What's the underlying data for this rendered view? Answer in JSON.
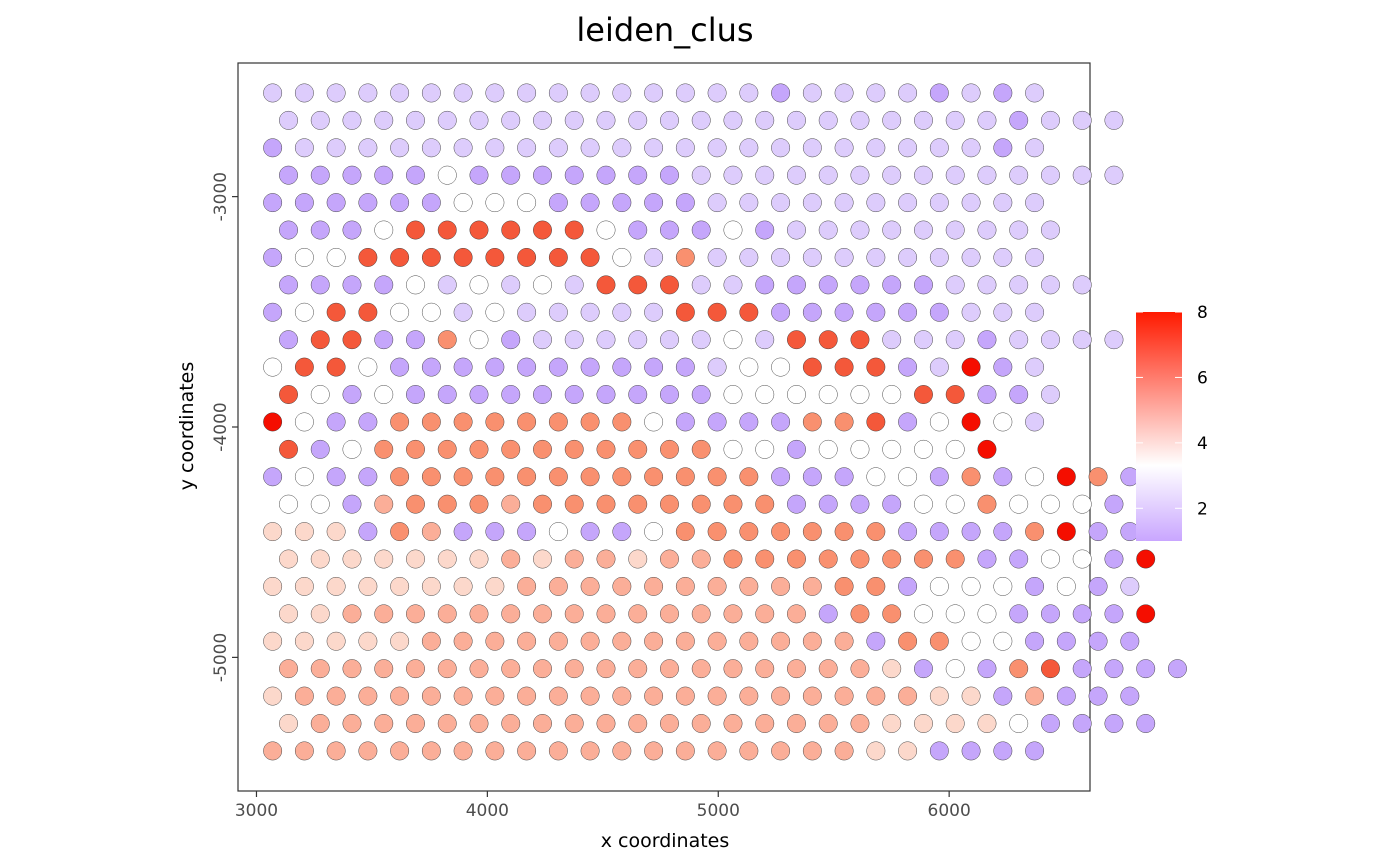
{
  "chart_data": {
    "type": "scatter",
    "title": "leiden_clus",
    "xlabel": "x coordinates",
    "ylabel": "y coordinates",
    "xlim": [
      2920,
      6610
    ],
    "ylim": [
      -5580,
      -2420
    ],
    "x_ticks": [
      3000,
      4000,
      5000,
      6000
    ],
    "y_ticks": [
      -3000,
      -4000,
      -5000
    ],
    "x_tick_labels": [
      "3000",
      "4000",
      "5000",
      "6000"
    ],
    "y_tick_labels": [
      "-3000",
      "-4000",
      "-5000"
    ],
    "grid": false,
    "colorbar": {
      "range": [
        1,
        8
      ],
      "ticks": [
        2,
        4,
        6,
        8
      ],
      "tick_labels": [
        "2",
        "4",
        "6",
        "8"
      ],
      "colors": [
        "#c9a6ff",
        "#ffffff",
        "#ff2a00"
      ],
      "placement": "right"
    },
    "spot_grid": {
      "x_start": 3070,
      "x_step": 137.5,
      "y_start": -2550,
      "y_step": -119,
      "odd_row_x_offset": 68.75
    },
    "cluster_colors": {
      "1": "#c5a6fb",
      "2": "#ddccfc",
      "3": "#ffffff",
      "4": "#fcd8cb",
      "5": "#fbae98",
      "6": "#f9906f",
      "7": "#f4583a",
      "8": "#f50e00"
    },
    "rows": [
      "2222222222222222122221212",
      "222222222222222222222221222",
      "1222222222222222222222212",
      "111113111111122222222222222",
      "1111113331111122222222222",
      "1113777777311131222222222",
      "1337777777732622222222222",
      "11113232327772211111122222",
      "1377332322222777111111222",
      "1771163122222232777222122222",
      "3773111111111123377712812",
      "7313111111111133333377112",
      "8311666666663111166713832",
      "71366666666666331333338",
      "1311666666666666111331613861",
      "3315666566666666111133633312",
      "4441651113113666666611116811",
      "4444444545545566666666113318",
      "4444444455555555556613331312",
      "4455555555555555516633311118",
      "4444455555555555555166331111",
      "55555555555555555554131671111",
      "4555555555555555555554415111",
      "4555555555555555555444431111",
      "5555555555555555555441111"
    ]
  }
}
